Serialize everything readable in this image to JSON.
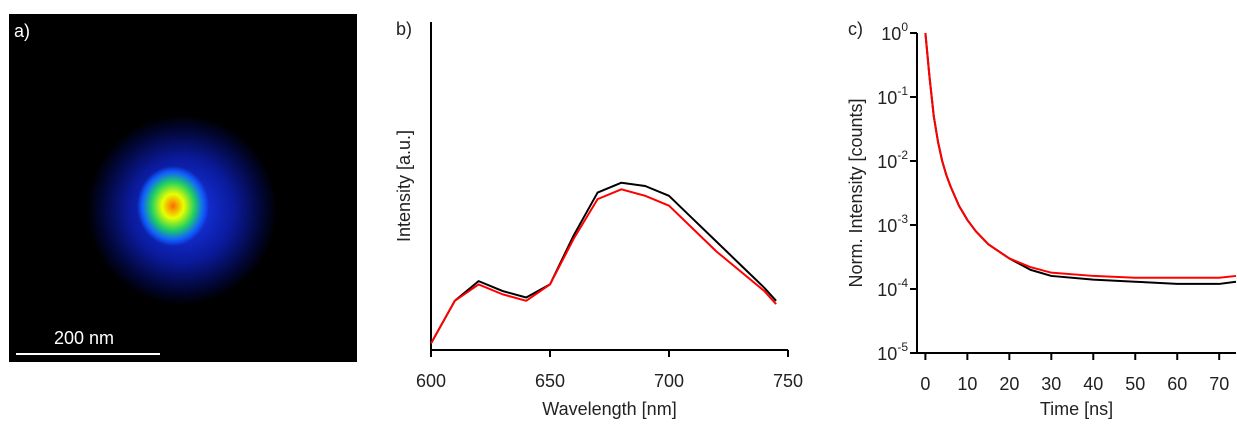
{
  "image": {
    "panel_label": "a)",
    "scale_bar": "200 nm"
  },
  "chart_data": [
    {
      "type": "line",
      "panel_label": "b)",
      "x_label": "Wavelength [nm]",
      "y_label": "Intensity [a.u.]",
      "x": [
        600,
        610,
        620,
        630,
        640,
        650,
        660,
        670,
        680,
        690,
        700,
        710,
        720,
        730,
        740,
        745
      ],
      "series": [
        {
          "color": "#000000",
          "values": [
            0.02,
            0.15,
            0.21,
            0.18,
            0.16,
            0.2,
            0.35,
            0.48,
            0.51,
            0.5,
            0.47,
            0.4,
            0.33,
            0.26,
            0.19,
            0.15
          ]
        },
        {
          "color": "#ff0000",
          "values": [
            0.02,
            0.15,
            0.2,
            0.17,
            0.15,
            0.2,
            0.34,
            0.46,
            0.49,
            0.47,
            0.44,
            0.37,
            0.3,
            0.24,
            0.18,
            0.14
          ]
        }
      ],
      "xlim": [
        600,
        750
      ],
      "xticks": [
        600,
        650,
        700,
        750
      ],
      "ylim": [
        0,
        1
      ]
    },
    {
      "type": "line",
      "panel_label": "c)",
      "x_label": "Time [ns]",
      "y_label": "Norm. Intensity [counts]",
      "log_y": true,
      "x": [
        0,
        1,
        2,
        3,
        4,
        5,
        6,
        8,
        10,
        12,
        15,
        20,
        25,
        30,
        40,
        50,
        60,
        70,
        74
      ],
      "series": [
        {
          "color": "#000000",
          "values": [
            1,
            0.2,
            0.05,
            0.02,
            0.01,
            0.006,
            0.004,
            0.002,
            0.0012,
            0.0008,
            0.0005,
            0.0003,
            0.0002,
            0.00016,
            0.00014,
            0.00013,
            0.00012,
            0.00012,
            0.00013
          ]
        },
        {
          "color": "#ff0000",
          "values": [
            1,
            0.2,
            0.05,
            0.02,
            0.01,
            0.006,
            0.004,
            0.002,
            0.0012,
            0.0008,
            0.0005,
            0.0003,
            0.00022,
            0.00018,
            0.00016,
            0.00015,
            0.00015,
            0.00015,
            0.00016
          ]
        }
      ],
      "xlim": [
        -2,
        74
      ],
      "xticks": [
        0,
        10,
        20,
        30,
        40,
        50,
        60,
        70
      ],
      "ylim": [
        1e-05,
        1
      ],
      "yticks": [
        {
          "value": 1e-05,
          "label": "10^-5"
        },
        {
          "value": 0.0001,
          "label": "10^-4"
        },
        {
          "value": 0.001,
          "label": "10^-3"
        },
        {
          "value": 0.01,
          "label": "10^-2"
        },
        {
          "value": 0.1,
          "label": "10^-1"
        },
        {
          "value": 1,
          "label": "10^0"
        }
      ]
    }
  ]
}
